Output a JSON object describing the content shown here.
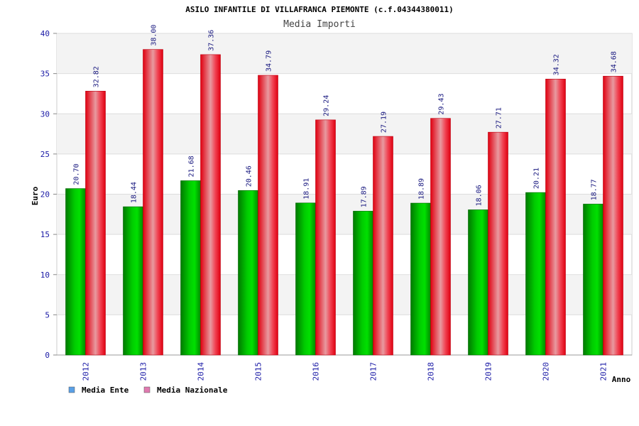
{
  "chart_data": {
    "type": "bar",
    "title": "ASILO INFANTILE DI VILLAFRANCA PIEMONTE (c.f.04344380011)",
    "subtitle": "Media Importi",
    "xlabel": "Anno",
    "ylabel": "Euro",
    "ylim": [
      0,
      40
    ],
    "yticks": [
      0,
      5,
      10,
      15,
      20,
      25,
      30,
      35,
      40
    ],
    "grid": true,
    "legend_position": "bottom-left",
    "categories": [
      "2012",
      "2013",
      "2014",
      "2015",
      "2016",
      "2017",
      "2018",
      "2019",
      "2020",
      "2021"
    ],
    "series": [
      {
        "name": "Media Ente",
        "color": "#00aa00",
        "legend_color": "#5aa0e6",
        "values": [
          20.7,
          18.44,
          21.68,
          20.46,
          18.91,
          17.89,
          18.89,
          18.06,
          20.21,
          18.77
        ],
        "labels": [
          "20.70",
          "18.44",
          "21.68",
          "20.46",
          "18.91",
          "17.89",
          "18.89",
          "18.06",
          "20.21",
          "18.77"
        ]
      },
      {
        "name": "Media Nazionale",
        "color": "#ee1122",
        "legend_color": "#e07ab0",
        "values": [
          32.82,
          38.0,
          37.36,
          34.79,
          29.24,
          27.19,
          29.43,
          27.71,
          34.32,
          34.68
        ],
        "labels": [
          "32.82",
          "38.00",
          "37.36",
          "34.79",
          "29.24",
          "27.19",
          "29.43",
          "27.71",
          "34.32",
          "34.68"
        ]
      }
    ]
  }
}
